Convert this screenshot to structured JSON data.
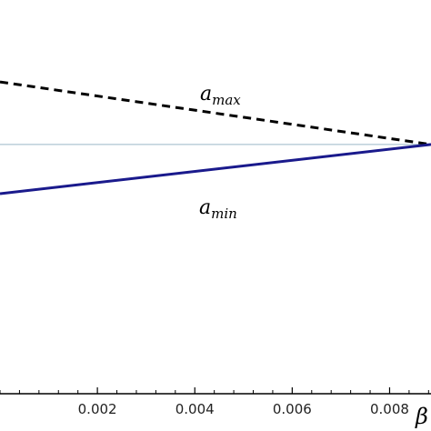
{
  "chart_data": {
    "type": "line",
    "xlabel": "β",
    "x_ticks": [
      0.002,
      0.004,
      0.006,
      0.008
    ],
    "x_tick_labels": [
      "0.002",
      "0.004",
      "0.006",
      "0.008"
    ],
    "xlim": [
      0.0,
      0.00885
    ],
    "ylim": [
      0.0,
      1.0
    ],
    "y_ticks": [],
    "grid": false,
    "legend": "none",
    "series": [
      {
        "name": "a",
        "subscript": "max",
        "style": "dashed",
        "color": "#000000",
        "x": [
          0.0,
          0.00885
        ],
        "y": [
          0.792,
          0.633
        ]
      },
      {
        "name": "a",
        "subscript": "min",
        "style": "solid",
        "color": "#1a1a8c",
        "x": [
          0.0,
          0.00885
        ],
        "y": [
          0.508,
          0.633
        ]
      }
    ],
    "reference_lines": [
      {
        "orientation": "horizontal",
        "y": 0.633,
        "color": "#9ab8c8"
      }
    ]
  }
}
